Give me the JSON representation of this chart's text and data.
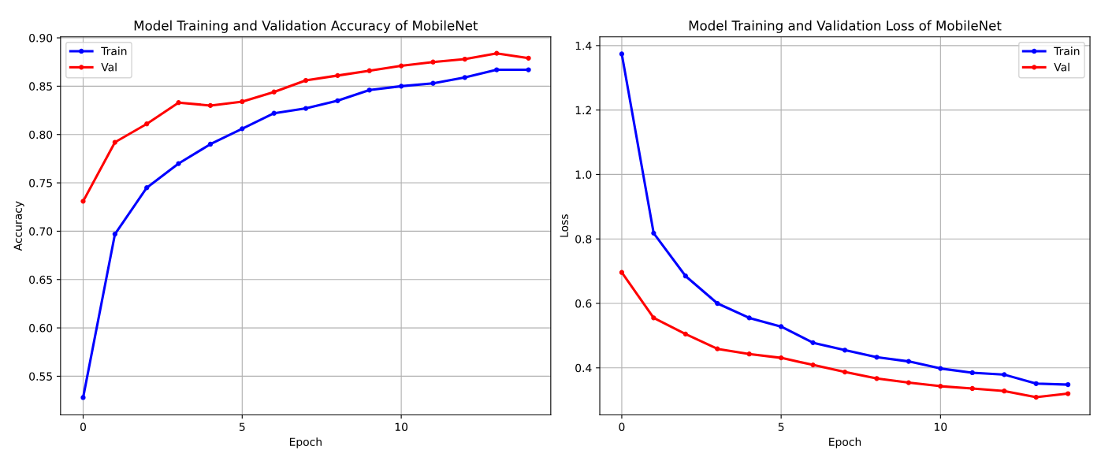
{
  "chart_data": [
    {
      "type": "line",
      "title": "Model Training and Validation Accuracy of MobileNet",
      "xlabel": "Epoch",
      "ylabel": "Accuracy",
      "x": [
        0,
        1,
        2,
        3,
        4,
        5,
        6,
        7,
        8,
        9,
        10,
        11,
        12,
        13,
        14
      ],
      "series": [
        {
          "name": "Train",
          "color": "#0000ff",
          "values": [
            0.528,
            0.697,
            0.745,
            0.77,
            0.79,
            0.806,
            0.822,
            0.827,
            0.835,
            0.846,
            0.85,
            0.853,
            0.859,
            0.867,
            0.867
          ]
        },
        {
          "name": "Val",
          "color": "#ff0000",
          "values": [
            0.731,
            0.792,
            0.811,
            0.833,
            0.83,
            0.834,
            0.844,
            0.856,
            0.861,
            0.866,
            0.871,
            0.875,
            0.878,
            0.884,
            0.879
          ]
        }
      ],
      "xlim": [
        -0.71,
        14.7
      ],
      "ylim": [
        0.51,
        0.901
      ],
      "xticks": [
        0,
        5,
        10
      ],
      "yticks": [
        {
          "value": 0.55,
          "label": "0.55"
        },
        {
          "value": 0.6,
          "label": "0.60"
        },
        {
          "value": 0.65,
          "label": "0.65"
        },
        {
          "value": 0.7,
          "label": "0.70"
        },
        {
          "value": 0.75,
          "label": "0.75"
        },
        {
          "value": 0.8,
          "label": "0.80"
        },
        {
          "value": 0.85,
          "label": "0.85"
        },
        {
          "value": 0.9,
          "label": "0.90"
        }
      ],
      "grid": true,
      "legend": "top left",
      "marker": "circle",
      "line_style": "solid"
    },
    {
      "type": "line",
      "title": "Model Training and Validation Loss of MobileNet",
      "xlabel": "Epoch",
      "ylabel": "Loss",
      "x": [
        0,
        1,
        2,
        3,
        4,
        5,
        6,
        7,
        8,
        9,
        10,
        11,
        12,
        13,
        14
      ],
      "series": [
        {
          "name": "Train",
          "color": "#0000ff",
          "values": [
            1.374,
            0.818,
            0.685,
            0.6,
            0.555,
            0.528,
            0.478,
            0.455,
            0.433,
            0.42,
            0.398,
            0.385,
            0.379,
            0.351,
            0.348
          ]
        },
        {
          "name": "Val",
          "color": "#ff0000",
          "values": [
            0.696,
            0.555,
            0.505,
            0.459,
            0.443,
            0.431,
            0.409,
            0.387,
            0.367,
            0.354,
            0.343,
            0.336,
            0.328,
            0.309,
            0.32
          ]
        }
      ],
      "xlim": [
        -0.69,
        14.69
      ],
      "ylim": [
        0.254,
        1.427
      ],
      "xticks": [
        0,
        5,
        10
      ],
      "yticks": [
        0.4,
        0.6,
        0.8,
        {
          "value": 1.0,
          "label": "1.0"
        },
        1.2,
        1.4
      ],
      "grid": true,
      "legend": "top right",
      "marker": "circle",
      "line_style": "solid"
    }
  ]
}
